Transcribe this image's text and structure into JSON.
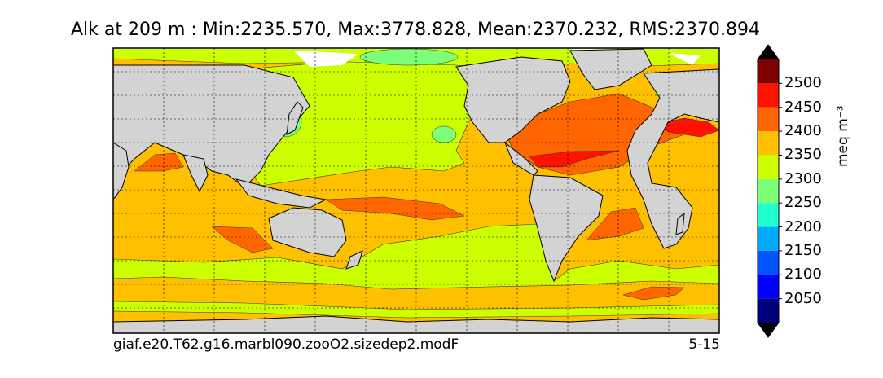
{
  "title": "Alk at 209 m : Min:2235.570, Max:3778.828, Mean:2370.232, RMS:2370.894",
  "footer": {
    "case_name": "giaf.e20.T62.g16.marbl090.zooO2.sizedep2.modF",
    "period": "5-15"
  },
  "colorbar": {
    "units": "meq m⁻³",
    "ticks": [
      "2500",
      "2450",
      "2400",
      "2350",
      "2300",
      "2250",
      "2200",
      "2150",
      "2100",
      "2050"
    ],
    "bins": [
      {
        "color": "#00007f"
      },
      {
        "color": "#0000ff"
      },
      {
        "color": "#0055ff"
      },
      {
        "color": "#00aaff"
      },
      {
        "color": "#1fffd0"
      },
      {
        "color": "#7cff79"
      },
      {
        "color": "#ccff00"
      },
      {
        "color": "#ffc000"
      },
      {
        "color": "#ff6600"
      },
      {
        "color": "#ff1200"
      },
      {
        "color": "#7f0000"
      }
    ]
  },
  "colors": {
    "land": "#d3d3d3",
    "missing": "#ffffff"
  }
}
